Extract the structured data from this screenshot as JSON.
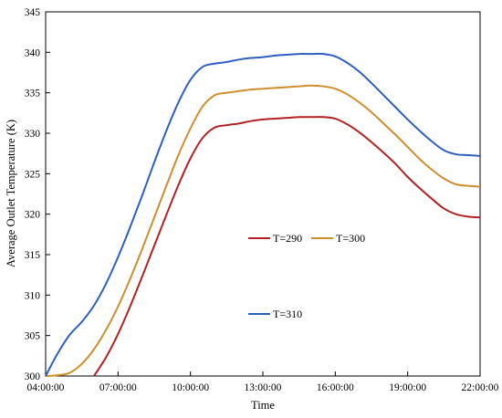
{
  "chart_data": {
    "type": "line",
    "xlabel": "Time",
    "ylabel": "Average Outlet Temperature (K)",
    "xlim": [
      4,
      22
    ],
    "ylim": [
      300,
      345
    ],
    "x_ticks": [
      {
        "value": 4,
        "label": "04:00:00"
      },
      {
        "value": 7,
        "label": "07:00:00"
      },
      {
        "value": 10,
        "label": "10:00:00"
      },
      {
        "value": 13,
        "label": "13:00:00"
      },
      {
        "value": 16,
        "label": "16:00:00"
      },
      {
        "value": 19,
        "label": "19:00:00"
      },
      {
        "value": 22,
        "label": "22:00:00"
      }
    ],
    "y_ticks": [
      300,
      305,
      310,
      315,
      320,
      325,
      330,
      335,
      340,
      345
    ],
    "grid": false,
    "series": [
      {
        "name": "T=290",
        "color": "#b22222",
        "x": [
          6,
          6.5,
          7,
          7.5,
          8,
          8.5,
          9,
          9.5,
          10,
          10.5,
          11,
          11.5,
          12,
          12.5,
          13,
          13.5,
          14,
          14.5,
          15,
          15.5,
          16,
          16.5,
          17,
          17.5,
          18,
          18.5,
          19,
          19.5,
          20,
          20.5,
          21,
          21.5,
          22
        ],
        "values": [
          300,
          302.3,
          305.2,
          308.6,
          312.3,
          316.1,
          319.9,
          323.6,
          326.9,
          329.4,
          330.7,
          331,
          331.2,
          331.5,
          331.7,
          331.8,
          331.9,
          332,
          332,
          332,
          331.8,
          331.1,
          330.1,
          328.9,
          327.6,
          326.2,
          324.6,
          323.2,
          321.9,
          320.7,
          320,
          319.7,
          319.6
        ]
      },
      {
        "name": "T=300",
        "color": "#cd8f2e",
        "x": [
          4,
          4.5,
          5,
          5.5,
          6,
          6.5,
          7,
          7.5,
          8,
          8.5,
          9,
          9.5,
          10,
          10.5,
          11,
          11.5,
          12,
          12.5,
          13,
          13.5,
          14,
          14.5,
          15,
          15.5,
          16,
          16.5,
          17,
          17.5,
          18,
          18.5,
          19,
          19.5,
          20,
          20.5,
          21,
          21.5,
          22
        ],
        "values": [
          300,
          300.1,
          300.4,
          301.5,
          303.3,
          305.7,
          308.6,
          312,
          315.7,
          319.6,
          323.5,
          327.3,
          330.6,
          333.3,
          334.7,
          335,
          335.2,
          335.4,
          335.5,
          335.6,
          335.7,
          335.8,
          335.9,
          335.8,
          335.5,
          334.8,
          333.8,
          332.6,
          331.2,
          329.8,
          328.3,
          326.8,
          325.5,
          324.4,
          323.7,
          323.5,
          323.4
        ]
      },
      {
        "name": "T=310",
        "color": "#2e5fbf",
        "x": [
          4,
          4.5,
          5,
          5.5,
          6,
          6.5,
          7,
          7.5,
          8,
          8.5,
          9,
          9.5,
          10,
          10.5,
          11,
          11.5,
          12,
          12.5,
          13,
          13.5,
          14,
          14.5,
          15,
          15.5,
          16,
          16.5,
          17,
          17.5,
          18,
          18.5,
          19,
          19.5,
          20,
          20.5,
          21,
          21.5,
          22
        ],
        "values": [
          300,
          302.8,
          305.1,
          306.7,
          308.7,
          311.4,
          314.7,
          318.4,
          322.3,
          326.4,
          330.3,
          333.8,
          336.6,
          338.2,
          338.6,
          338.8,
          339.1,
          339.3,
          339.4,
          339.6,
          339.7,
          339.8,
          339.8,
          339.8,
          339.5,
          338.7,
          337.6,
          336.2,
          334.7,
          333.2,
          331.7,
          330.3,
          329,
          327.9,
          327.4,
          327.3,
          327.2
        ]
      }
    ],
    "legend": [
      {
        "label": "T=290",
        "color": "#b22222",
        "row": 1
      },
      {
        "label": "T=300",
        "color": "#cd8f2e",
        "row": 1
      },
      {
        "label": "T=310",
        "color": "#2e5fbf",
        "row": 2
      }
    ]
  }
}
